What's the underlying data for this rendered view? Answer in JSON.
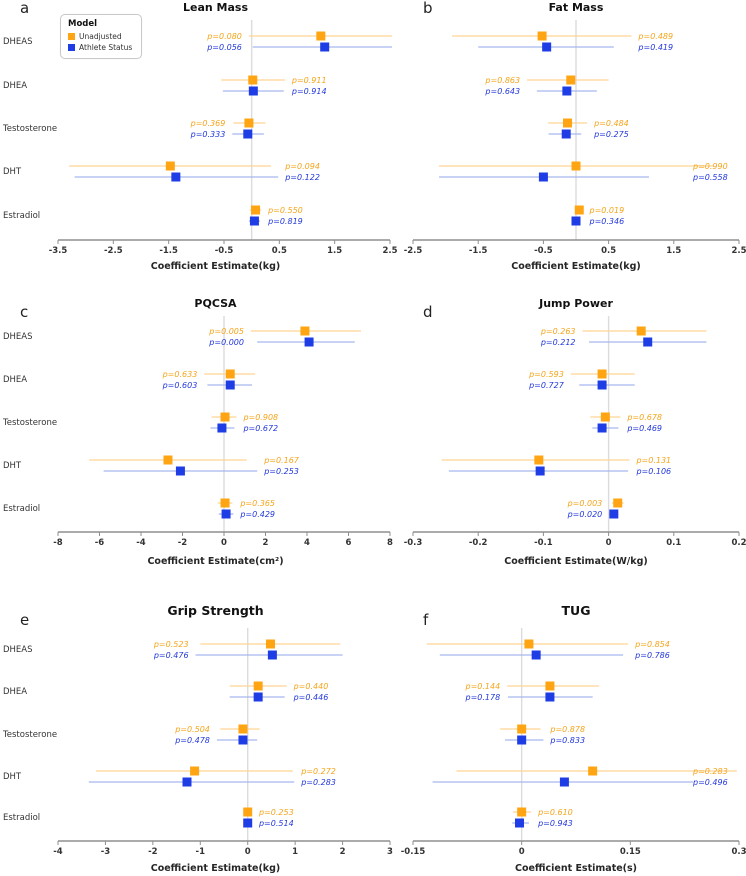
{
  "figure_name": "Forest plots of hormone coefficient estimates",
  "row_labels": [
    "DHEAS",
    "DHEA",
    "Testosterone",
    "DHT",
    "Estradiol"
  ],
  "legend": {
    "title": "Model",
    "entries": [
      {
        "label": "Unadjusted",
        "color": "#FFA513"
      },
      {
        "label": "Athlete Status",
        "color": "#1F3DE4"
      }
    ]
  },
  "colors": {
    "unadjusted_marker": "#FFA513",
    "unadjusted_line": "#FFD494",
    "unadjusted_text": "#F5A51B",
    "athlete_marker": "#1F3DE4",
    "athlete_line": "#A8B6EE",
    "athlete_text": "#2338DC",
    "zero_line": "#DCDCDC",
    "axis": "#8F8F8F",
    "tick_text": "#333333"
  },
  "chart_data": [
    {
      "type": "forest",
      "letter": "a",
      "title": "Lean Mass",
      "xlabel": "Coefficient Estimate(kg)",
      "xlim": [
        -3.5,
        2.5
      ],
      "xticks": [
        {
          "v": -3.5,
          "t": "-3.5"
        },
        {
          "v": -2.5,
          "t": "-2.5"
        },
        {
          "v": -1.5,
          "t": "-1.5"
        },
        {
          "v": -0.5,
          "t": "-0.5"
        },
        {
          "v": 0.5,
          "t": "0.5"
        },
        {
          "v": 1.5,
          "t": "1.5"
        },
        {
          "v": 2.5,
          "t": "2.5"
        }
      ],
      "show_row_labels": true,
      "show_legend": true,
      "rows": [
        {
          "label": "DHEAS",
          "p_side": "left",
          "unadjusted": {
            "est": 1.25,
            "lo": -0.05,
            "hi": 2.62,
            "p": "p=0.080"
          },
          "athlete": {
            "est": 1.32,
            "lo": 0.02,
            "hi": 2.62,
            "p": "p=0.056"
          }
        },
        {
          "label": "DHEA",
          "p_side": "right",
          "unadjusted": {
            "est": 0.02,
            "lo": -0.55,
            "hi": 0.6,
            "p": "p=0.911"
          },
          "athlete": {
            "est": 0.03,
            "lo": -0.52,
            "hi": 0.58,
            "p": "p=0.914"
          }
        },
        {
          "label": "Testosterone",
          "p_side": "left",
          "unadjusted": {
            "est": -0.05,
            "lo": -0.33,
            "hi": 0.25,
            "p": "p=0.369"
          },
          "athlete": {
            "est": -0.07,
            "lo": -0.35,
            "hi": 0.22,
            "p": "p=0.333"
          }
        },
        {
          "label": "DHT",
          "p_side": "right",
          "unadjusted": {
            "est": -1.47,
            "lo": -3.3,
            "hi": 0.35,
            "p": "p=0.094"
          },
          "athlete": {
            "est": -1.37,
            "lo": -3.2,
            "hi": 0.48,
            "p": "p=0.122"
          }
        },
        {
          "label": "Estradiol",
          "p_side": "right",
          "unadjusted": {
            "est": 0.07,
            "lo": -0.03,
            "hi": 0.17,
            "p": "p=0.550"
          },
          "athlete": {
            "est": 0.05,
            "lo": -0.05,
            "hi": 0.15,
            "p": "p=0.819"
          }
        }
      ]
    },
    {
      "type": "forest",
      "letter": "b",
      "title": "Fat Mass",
      "xlabel": "Coefficient Estimate(kg)",
      "xlim": [
        -2.5,
        2.5
      ],
      "xticks": [
        {
          "v": -2.5,
          "t": "-2.5"
        },
        {
          "v": -1.5,
          "t": "-1.5"
        },
        {
          "v": -0.5,
          "t": "-0.5"
        },
        {
          "v": 0.5,
          "t": "0.5"
        },
        {
          "v": 1.5,
          "t": "1.5"
        },
        {
          "v": 2.5,
          "t": "2.5"
        }
      ],
      "show_row_labels": false,
      "show_legend": false,
      "rows": [
        {
          "label": "DHEAS",
          "p_side": "right",
          "unadjusted": {
            "est": -0.52,
            "lo": -1.9,
            "hi": 0.85,
            "p": "p=0.489"
          },
          "athlete": {
            "est": -0.45,
            "lo": -1.5,
            "hi": 0.58,
            "p": "p=0.419"
          }
        },
        {
          "label": "DHEA",
          "p_side": "left",
          "unadjusted": {
            "est": -0.08,
            "lo": -0.75,
            "hi": 0.5,
            "p": "p=0.863"
          },
          "athlete": {
            "est": -0.14,
            "lo": -0.6,
            "hi": 0.32,
            "p": "p=0.643"
          }
        },
        {
          "label": "Testosterone",
          "p_side": "right",
          "unadjusted": {
            "est": -0.13,
            "lo": -0.43,
            "hi": 0.17,
            "p": "p=0.484"
          },
          "athlete": {
            "est": -0.15,
            "lo": -0.42,
            "hi": 0.08,
            "p": "p=0.275"
          }
        },
        {
          "label": "DHT",
          "p_side": "right",
          "unadjusted": {
            "est": 0.0,
            "lo": -2.1,
            "hi": 2.1,
            "p": "p=0.990"
          },
          "athlete": {
            "est": -0.5,
            "lo": -2.1,
            "hi": 1.12,
            "p": "p=0.558"
          }
        },
        {
          "label": "Estradiol",
          "p_side": "right",
          "unadjusted": {
            "est": 0.05,
            "lo": 0.01,
            "hi": 0.1,
            "p": "p=0.019"
          },
          "athlete": {
            "est": 0.0,
            "lo": -0.06,
            "hi": 0.07,
            "p": "p=0.346"
          }
        }
      ]
    },
    {
      "type": "forest",
      "letter": "c",
      "title": "PQCSA",
      "xlabel": "Coefficient Estimate(cm²)",
      "xlim": [
        -8,
        8
      ],
      "xticks": [
        {
          "v": -8,
          "t": "-8"
        },
        {
          "v": -6,
          "t": "-6"
        },
        {
          "v": -4,
          "t": "-4"
        },
        {
          "v": -2,
          "t": "-2"
        },
        {
          "v": 0,
          "t": "0"
        },
        {
          "v": 2,
          "t": "2"
        },
        {
          "v": 4,
          "t": "4"
        },
        {
          "v": 6,
          "t": "6"
        },
        {
          "v": 8,
          "t": "8"
        }
      ],
      "show_row_labels": true,
      "show_legend": false,
      "rows": [
        {
          "label": "DHEAS",
          "p_side": "left",
          "unadjusted": {
            "est": 3.9,
            "lo": 1.3,
            "hi": 6.6,
            "p": "p=0.005"
          },
          "athlete": {
            "est": 4.1,
            "lo": 1.6,
            "hi": 6.3,
            "p": "p=0.000"
          }
        },
        {
          "label": "DHEA",
          "p_side": "left",
          "unadjusted": {
            "est": 0.3,
            "lo": -0.95,
            "hi": 1.5,
            "p": "p=0.633"
          },
          "athlete": {
            "est": 0.3,
            "lo": -0.8,
            "hi": 1.35,
            "p": "p=0.603"
          }
        },
        {
          "label": "Testosterone",
          "p_side": "right",
          "unadjusted": {
            "est": 0.05,
            "lo": -0.6,
            "hi": 0.6,
            "p": "p=0.908"
          },
          "athlete": {
            "est": -0.1,
            "lo": -0.65,
            "hi": 0.5,
            "p": "p=0.672"
          }
        },
        {
          "label": "DHT",
          "p_side": "right",
          "unadjusted": {
            "est": -2.7,
            "lo": -6.5,
            "hi": 1.1,
            "p": "p=0.167"
          },
          "athlete": {
            "est": -2.1,
            "lo": -5.8,
            "hi": 1.6,
            "p": "p=0.253"
          }
        },
        {
          "label": "Estradiol",
          "p_side": "right",
          "unadjusted": {
            "est": 0.05,
            "lo": -0.3,
            "hi": 0.4,
            "p": "p=0.365"
          },
          "athlete": {
            "est": 0.1,
            "lo": -0.25,
            "hi": 0.45,
            "p": "p=0.429"
          }
        }
      ]
    },
    {
      "type": "forest",
      "letter": "d",
      "title": "Jump Power",
      "xlabel": "Coefficient Estimate(W/kg)",
      "xlim": [
        -0.3,
        0.2
      ],
      "xticks": [
        {
          "v": -0.3,
          "t": "-0.3"
        },
        {
          "v": -0.2,
          "t": "-0.2"
        },
        {
          "v": -0.1,
          "t": "-0.1"
        },
        {
          "v": 0,
          "t": "0"
        },
        {
          "v": 0.1,
          "t": "0.1"
        },
        {
          "v": 0.2,
          "t": "0.2"
        }
      ],
      "show_row_labels": false,
      "show_legend": false,
      "rows": [
        {
          "label": "DHEAS",
          "p_side": "left",
          "unadjusted": {
            "est": 0.05,
            "lo": -0.04,
            "hi": 0.15,
            "p": "p=0.263"
          },
          "athlete": {
            "est": 0.06,
            "lo": -0.03,
            "hi": 0.15,
            "p": "p=0.212"
          }
        },
        {
          "label": "DHEA",
          "p_side": "left",
          "unadjusted": {
            "est": -0.01,
            "lo": -0.058,
            "hi": 0.04,
            "p": "p=0.593"
          },
          "athlete": {
            "est": -0.01,
            "lo": -0.045,
            "hi": 0.04,
            "p": "p=0.727"
          }
        },
        {
          "label": "Testosterone",
          "p_side": "right",
          "unadjusted": {
            "est": -0.005,
            "lo": -0.028,
            "hi": 0.018,
            "p": "p=0.678"
          },
          "athlete": {
            "est": -0.01,
            "lo": -0.025,
            "hi": 0.015,
            "p": "p=0.469"
          }
        },
        {
          "label": "DHT",
          "p_side": "right",
          "unadjusted": {
            "est": -0.107,
            "lo": -0.256,
            "hi": 0.032,
            "p": "p=0.131"
          },
          "athlete": {
            "est": -0.105,
            "lo": -0.245,
            "hi": 0.03,
            "p": "p=0.106"
          }
        },
        {
          "label": "Estradiol",
          "p_side": "left",
          "unadjusted": {
            "est": 0.014,
            "lo": 0.005,
            "hi": 0.023,
            "p": "p=0.003"
          },
          "athlete": {
            "est": 0.008,
            "lo": 0.001,
            "hi": 0.015,
            "p": "p=0.020"
          }
        }
      ]
    },
    {
      "type": "forest",
      "letter": "e",
      "title": "Grip Strength",
      "xlabel": "Coefficient Estimate(kg)",
      "xlim": [
        -4,
        3
      ],
      "xticks": [
        {
          "v": -4,
          "t": "-4"
        },
        {
          "v": -3,
          "t": "-3"
        },
        {
          "v": -2,
          "t": "-2"
        },
        {
          "v": -1,
          "t": "-1"
        },
        {
          "v": 0,
          "t": "0"
        },
        {
          "v": 1,
          "t": "1"
        },
        {
          "v": 2,
          "t": "2"
        },
        {
          "v": 3,
          "t": "3"
        }
      ],
      "show_row_labels": true,
      "show_legend": false,
      "rows": [
        {
          "label": "DHEAS",
          "p_side": "left",
          "unadjusted": {
            "est": 0.48,
            "lo": -1.0,
            "hi": 1.95,
            "p": "p=0.523"
          },
          "athlete": {
            "est": 0.52,
            "lo": -1.1,
            "hi": 2.0,
            "p": "p=0.476"
          }
        },
        {
          "label": "DHEA",
          "p_side": "right",
          "unadjusted": {
            "est": 0.22,
            "lo": -0.38,
            "hi": 0.82,
            "p": "p=0.440"
          },
          "athlete": {
            "est": 0.22,
            "lo": -0.38,
            "hi": 0.78,
            "p": "p=0.446"
          }
        },
        {
          "label": "Testosterone",
          "p_side": "left",
          "unadjusted": {
            "est": -0.1,
            "lo": -0.58,
            "hi": 0.25,
            "p": "p=0.504"
          },
          "athlete": {
            "est": -0.1,
            "lo": -0.65,
            "hi": 0.2,
            "p": "p=0.478"
          }
        },
        {
          "label": "DHT",
          "p_side": "right",
          "unadjusted": {
            "est": -1.12,
            "lo": -3.2,
            "hi": 0.95,
            "p": "p=0.272"
          },
          "athlete": {
            "est": -1.28,
            "lo": -3.35,
            "hi": 0.98,
            "p": "p=0.283"
          }
        },
        {
          "label": "Estradiol",
          "p_side": "right",
          "unadjusted": {
            "est": 0.0,
            "lo": -0.09,
            "hi": 0.09,
            "p": "p=0.253"
          },
          "athlete": {
            "est": 0.0,
            "lo": -0.09,
            "hi": 0.09,
            "p": "p=0.514"
          }
        }
      ]
    },
    {
      "type": "forest",
      "letter": "f",
      "title": "TUG",
      "xlabel": "Coefficient Estimate(s)",
      "xlim": [
        -0.15,
        0.3
      ],
      "xticks": [
        {
          "v": -0.15,
          "t": "-0.15"
        },
        {
          "v": 0,
          "t": "0"
        },
        {
          "v": 0.15,
          "t": "0.15"
        },
        {
          "v": 0.3,
          "t": "0.3"
        }
      ],
      "show_row_labels": false,
      "show_legend": false,
      "rows": [
        {
          "label": "DHEAS",
          "p_side": "right",
          "unadjusted": {
            "est": 0.01,
            "lo": -0.131,
            "hi": 0.147,
            "p": "p=0.854"
          },
          "athlete": {
            "est": 0.02,
            "lo": -0.113,
            "hi": 0.14,
            "p": "p=0.786"
          }
        },
        {
          "label": "DHEA",
          "p_side": "left",
          "unadjusted": {
            "est": 0.039,
            "lo": -0.02,
            "hi": 0.107,
            "p": "p=0.144"
          },
          "athlete": {
            "est": 0.039,
            "lo": -0.019,
            "hi": 0.098,
            "p": "p=0.178"
          }
        },
        {
          "label": "Testosterone",
          "p_side": "right",
          "unadjusted": {
            "est": 0.0,
            "lo": -0.03,
            "hi": 0.026,
            "p": "p=0.878"
          },
          "athlete": {
            "est": 0.0,
            "lo": -0.023,
            "hi": 0.03,
            "p": "p=0.833"
          }
        },
        {
          "label": "DHT",
          "p_side": "right",
          "unadjusted": {
            "est": 0.098,
            "lo": -0.09,
            "hi": 0.297,
            "p": "p=0.283"
          },
          "athlete": {
            "est": 0.059,
            "lo": -0.123,
            "hi": 0.237,
            "p": "p=0.496"
          }
        },
        {
          "label": "Estradiol",
          "p_side": "right",
          "unadjusted": {
            "est": 0.0,
            "lo": -0.012,
            "hi": 0.013,
            "p": "p=0.610"
          },
          "athlete": {
            "est": -0.003,
            "lo": -0.013,
            "hi": 0.01,
            "p": "p=0.943"
          }
        }
      ]
    }
  ]
}
